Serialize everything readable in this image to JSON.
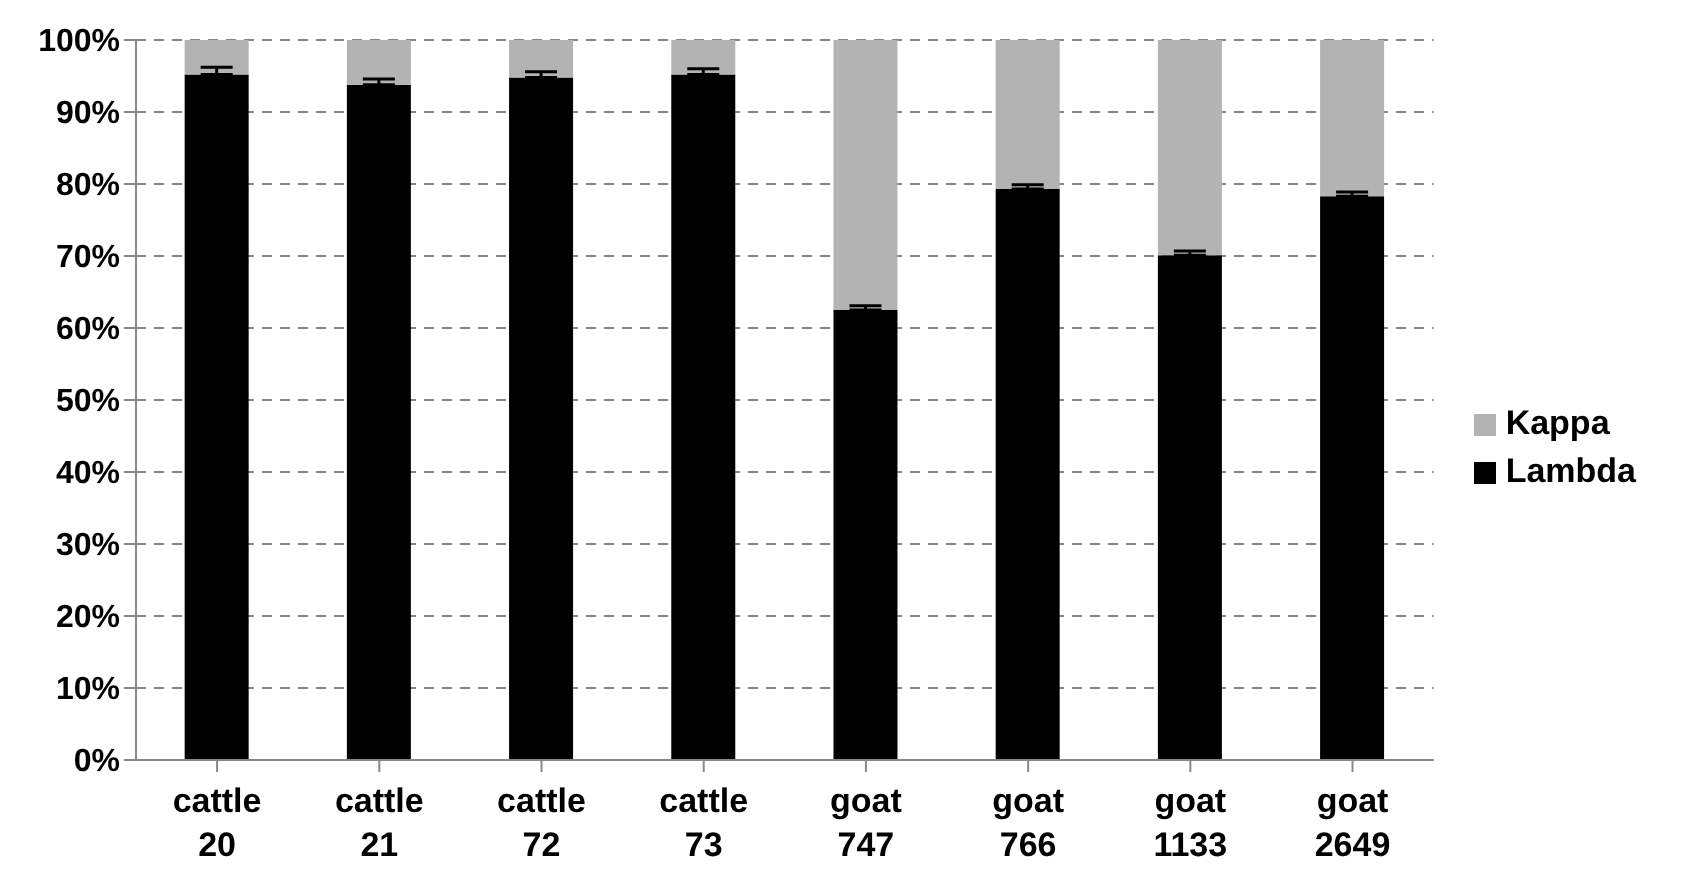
{
  "chart_data": {
    "type": "bar",
    "stacked": true,
    "categories": [
      "cattle 20",
      "cattle 21",
      "cattle 72",
      "cattle 73",
      "goat 747",
      "goat 766",
      "goat 1133",
      "goat 2649"
    ],
    "series": [
      {
        "name": "Lambda",
        "color": "#000000",
        "values": [
          95.2,
          93.8,
          94.8,
          95.2,
          62.5,
          79.3,
          70.1,
          78.3
        ],
        "errors": [
          [
            95.2,
            96.2
          ],
          [
            93.8,
            94.6
          ],
          [
            94.8,
            95.6
          ],
          [
            95.2,
            96.0
          ],
          [
            62.5,
            63.1
          ],
          [
            79.3,
            79.9
          ],
          [
            70.1,
            70.7
          ],
          [
            78.3,
            78.9
          ]
        ]
      },
      {
        "name": "Kappa",
        "color": "#b3b3b3",
        "values": [
          4.8,
          6.2,
          5.2,
          4.8,
          37.5,
          20.7,
          29.9,
          21.7
        ]
      }
    ],
    "ylim": [
      0,
      100
    ],
    "yticks": [
      {
        "value": 0,
        "label": "0%"
      },
      {
        "value": 10,
        "label": "10%"
      },
      {
        "value": 20,
        "label": "20%"
      },
      {
        "value": 30,
        "label": "30%"
      },
      {
        "value": 40,
        "label": "40%"
      },
      {
        "value": 50,
        "label": "50%"
      },
      {
        "value": 60,
        "label": "60%"
      },
      {
        "value": 70,
        "label": "70%"
      },
      {
        "value": 80,
        "label": "80%"
      },
      {
        "value": 90,
        "label": "90%"
      },
      {
        "value": 100,
        "label": "100%"
      }
    ],
    "grid": "y",
    "legend": "right"
  }
}
